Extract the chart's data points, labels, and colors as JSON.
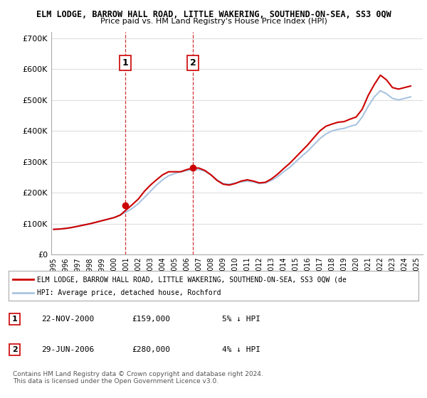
{
  "title1": "ELM LODGE, BARROW HALL ROAD, LITTLE WAKERING, SOUTHEND-ON-SEA, SS3 0QW",
  "title2": "Price paid vs. HM Land Registry's House Price Index (HPI)",
  "legend_line1": "ELM LODGE, BARROW HALL ROAD, LITTLE WAKERING, SOUTHEND-ON-SEA, SS3 0QW (de",
  "legend_line2": "HPI: Average price, detached house, Rochford",
  "table_rows": [
    {
      "num": "1",
      "date": "22-NOV-2000",
      "price": "£159,000",
      "hpi": "5% ↓ HPI"
    },
    {
      "num": "2",
      "date": "29-JUN-2006",
      "price": "£280,000",
      "hpi": "4% ↓ HPI"
    }
  ],
  "footnote1": "Contains HM Land Registry data © Crown copyright and database right 2024.",
  "footnote2": "This data is licensed under the Open Government Licence v3.0.",
  "hpi_color": "#aac4e0",
  "price_color": "#cc0000",
  "vline_color": "#cc0000",
  "grid_color": "#dddddd",
  "background_color": "#ffffff",
  "ylim": [
    0,
    720000
  ],
  "yticks": [
    0,
    100000,
    200000,
    300000,
    400000,
    500000,
    600000,
    700000
  ],
  "xlabel_years": [
    "1995",
    "1996",
    "1997",
    "1998",
    "1999",
    "2000",
    "2001",
    "2002",
    "2003",
    "2004",
    "2005",
    "2006",
    "2007",
    "2008",
    "2009",
    "2010",
    "2011",
    "2012",
    "2013",
    "2014",
    "2015",
    "2016",
    "2017",
    "2018",
    "2019",
    "2020",
    "2021",
    "2022",
    "2023",
    "2024",
    "2025"
  ],
  "hpi_x": [
    1995.0,
    1995.5,
    1996.0,
    1996.5,
    1997.0,
    1997.5,
    1998.0,
    1998.5,
    1999.0,
    1999.5,
    2000.0,
    2000.5,
    2001.0,
    2001.5,
    2002.0,
    2002.5,
    2003.0,
    2003.5,
    2004.0,
    2004.5,
    2005.0,
    2005.5,
    2006.0,
    2006.5,
    2007.0,
    2007.5,
    2008.0,
    2008.5,
    2009.0,
    2009.5,
    2010.0,
    2010.5,
    2011.0,
    2011.5,
    2012.0,
    2012.5,
    2013.0,
    2013.5,
    2014.0,
    2014.5,
    2015.0,
    2015.5,
    2016.0,
    2016.5,
    2017.0,
    2017.5,
    2018.0,
    2018.5,
    2019.0,
    2019.5,
    2020.0,
    2020.5,
    2021.0,
    2021.5,
    2022.0,
    2022.5,
    2023.0,
    2023.5,
    2024.0,
    2024.5
  ],
  "hpi_y": [
    82000,
    83000,
    85000,
    88000,
    92000,
    96000,
    100000,
    105000,
    110000,
    115000,
    120000,
    128000,
    138000,
    150000,
    165000,
    185000,
    205000,
    225000,
    242000,
    255000,
    262000,
    268000,
    272000,
    275000,
    275000,
    270000,
    258000,
    242000,
    230000,
    228000,
    232000,
    235000,
    238000,
    235000,
    230000,
    232000,
    240000,
    252000,
    268000,
    282000,
    300000,
    318000,
    335000,
    355000,
    375000,
    390000,
    400000,
    405000,
    408000,
    415000,
    420000,
    445000,
    480000,
    510000,
    530000,
    520000,
    505000,
    500000,
    505000,
    510000
  ],
  "price_x": [
    1995.0,
    1995.5,
    1996.0,
    1996.5,
    1997.0,
    1997.5,
    1998.0,
    1998.5,
    1999.0,
    1999.5,
    2000.0,
    2000.5,
    2001.0,
    2001.5,
    2002.0,
    2002.5,
    2003.0,
    2003.5,
    2004.0,
    2004.5,
    2005.0,
    2005.5,
    2006.0,
    2006.5,
    2007.0,
    2007.5,
    2008.0,
    2008.5,
    2009.0,
    2009.5,
    2010.0,
    2010.5,
    2011.0,
    2011.5,
    2012.0,
    2012.5,
    2013.0,
    2013.5,
    2014.0,
    2014.5,
    2015.0,
    2015.5,
    2016.0,
    2016.5,
    2017.0,
    2017.5,
    2018.0,
    2018.5,
    2019.0,
    2019.5,
    2020.0,
    2020.5,
    2021.0,
    2021.5,
    2022.0,
    2022.5,
    2023.0,
    2023.5,
    2024.0,
    2024.5
  ],
  "price_y": [
    82000,
    83000,
    85000,
    88000,
    92000,
    96000,
    100000,
    105000,
    110000,
    115000,
    120000,
    128000,
    145000,
    162000,
    180000,
    205000,
    225000,
    242000,
    258000,
    268000,
    268000,
    268000,
    275000,
    280000,
    280000,
    272000,
    258000,
    240000,
    228000,
    225000,
    230000,
    238000,
    242000,
    238000,
    232000,
    234000,
    245000,
    260000,
    278000,
    295000,
    315000,
    335000,
    355000,
    378000,
    400000,
    415000,
    422000,
    428000,
    430000,
    438000,
    445000,
    470000,
    515000,
    550000,
    580000,
    565000,
    540000,
    535000,
    540000,
    545000
  ],
  "sale1_x": 2000.9,
  "sale1_y": 159000,
  "sale2_x": 2006.5,
  "sale2_y": 280000,
  "vline1_x": 2000.9,
  "vline2_x": 2006.5,
  "xlim": [
    1994.8,
    2025.5
  ]
}
